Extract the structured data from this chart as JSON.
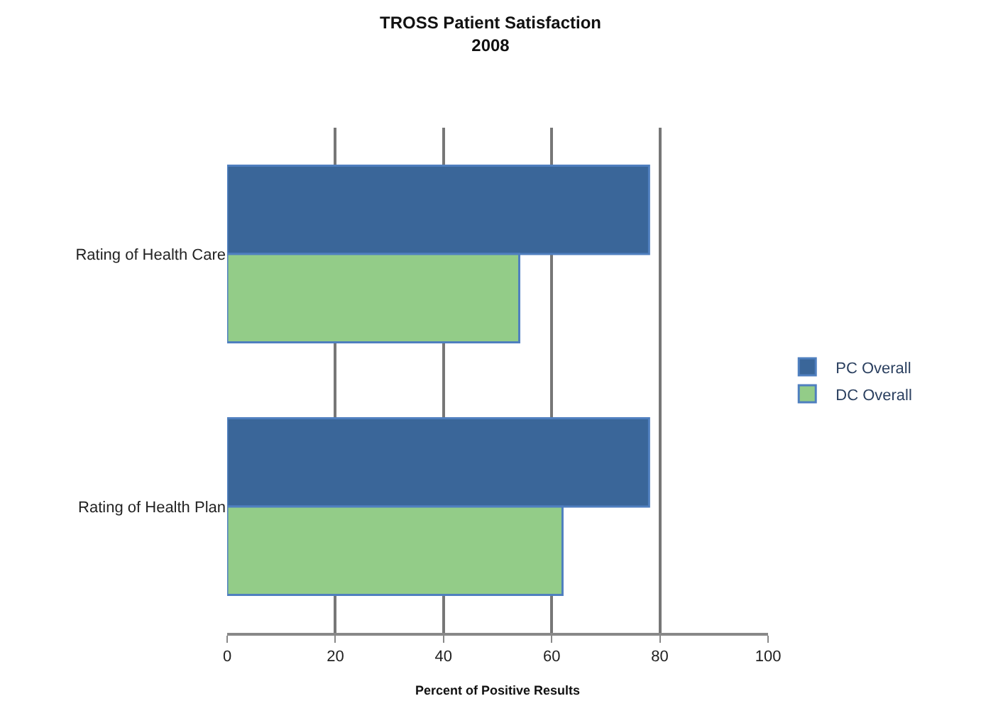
{
  "chart_data": {
    "type": "bar",
    "orientation": "horizontal",
    "title": "TROSS Patient Satisfaction\n2008",
    "xlabel": "Percent of Positive Results",
    "categories": [
      "Rating of Health Care",
      "Rating of Health Plan"
    ],
    "series": [
      {
        "name": "PC Overall",
        "color": "#3a6699",
        "values": [
          78,
          78
        ]
      },
      {
        "name": "DC Overall",
        "color": "#93cc88",
        "values": [
          54,
          62
        ]
      }
    ],
    "xlim": [
      0,
      100
    ],
    "xticks": [
      0,
      20,
      40,
      60,
      80,
      100
    ],
    "grid": "x",
    "legend": "right"
  }
}
